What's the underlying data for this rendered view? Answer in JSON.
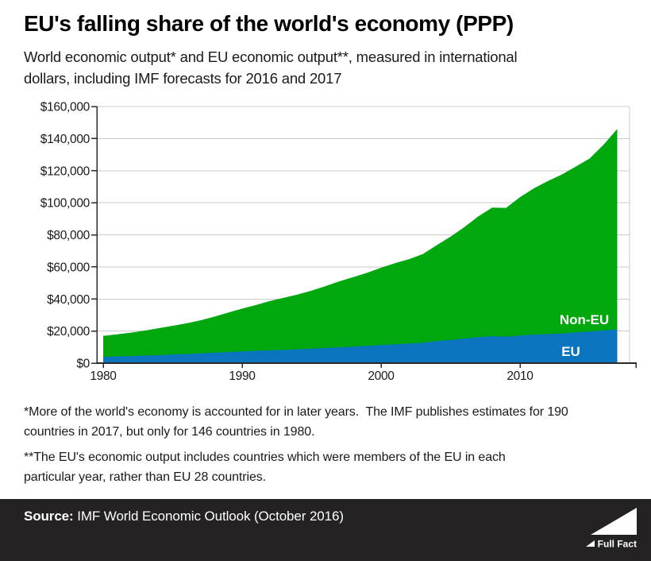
{
  "header": {
    "title": "EU's falling share of the world's economy (PPP)",
    "subtitle_line1": "World economic output* and EU economic output**, measured in international",
    "subtitle_line2": "dollars, including IMF forecasts for 2016 and 2017"
  },
  "chart_data": {
    "type": "area",
    "stacked": true,
    "title": "EU's falling share of the world's economy (PPP)",
    "xlabel": "",
    "ylabel": "international dollars",
    "xlim": [
      1980,
      2017
    ],
    "ylim": [
      0,
      160000
    ],
    "grid": "horizontal",
    "legend_position": "labels-inside-areas",
    "x": [
      1980,
      1981,
      1982,
      1983,
      1984,
      1985,
      1986,
      1987,
      1988,
      1989,
      1990,
      1991,
      1992,
      1993,
      1994,
      1995,
      1996,
      1997,
      1998,
      1999,
      2000,
      2001,
      2002,
      2003,
      2004,
      2005,
      2006,
      2007,
      2008,
      2009,
      2010,
      2011,
      2012,
      2013,
      2014,
      2015,
      2016,
      2017
    ],
    "series": [
      {
        "name": "World total (EU + Non-EU)",
        "area_label": "Non-EU",
        "color": "#00a80e",
        "values": [
          17000,
          18000,
          19000,
          20300,
          21800,
          23300,
          24800,
          26700,
          29000,
          31500,
          34000,
          36200,
          38800,
          40700,
          42800,
          45200,
          48000,
          51000,
          53600,
          56300,
          59500,
          62300,
          64800,
          68000,
          73500,
          78800,
          84800,
          91500,
          97000,
          96800,
          103500,
          109000,
          113500,
          117500,
          122500,
          127500,
          136000,
          146000
        ]
      },
      {
        "name": "EU",
        "area_label": "EU",
        "color": "#0b74be",
        "values": [
          3900,
          4200,
          4400,
          4700,
          5000,
          5400,
          5700,
          6100,
          6500,
          6900,
          7300,
          7700,
          8000,
          8200,
          8600,
          9000,
          9400,
          9900,
          10300,
          10800,
          11300,
          11800,
          12200,
          12700,
          13800,
          14400,
          15300,
          16300,
          16800,
          16500,
          17200,
          17800,
          18100,
          18500,
          19100,
          19700,
          20400,
          21000
        ]
      }
    ],
    "y_ticks": [
      {
        "value": 0,
        "label": "$0"
      },
      {
        "value": 20000,
        "label": "$20,000"
      },
      {
        "value": 40000,
        "label": "$40,000"
      },
      {
        "value": 60000,
        "label": "$60,000"
      },
      {
        "value": 80000,
        "label": "$80,000"
      },
      {
        "value": 100000,
        "label": "$100,000"
      },
      {
        "value": 120000,
        "label": "$120,000"
      },
      {
        "value": 140000,
        "label": "$140,000"
      },
      {
        "value": 160000,
        "label": "$160,000"
      }
    ],
    "x_ticks": [
      {
        "value": 1980,
        "label": "1980"
      },
      {
        "value": 1990,
        "label": "1990"
      },
      {
        "value": 2000,
        "label": "2000"
      },
      {
        "value": 2010,
        "label": "2010"
      }
    ],
    "area_labels": [
      {
        "text": "Non-EU",
        "x": 736,
        "y": 290,
        "color": "#ffffff"
      },
      {
        "text": "EU",
        "x": 719,
        "y": 330,
        "color": "#ffffff"
      }
    ]
  },
  "footnotes": {
    "fn1_line1": "*More of the world's economy is accounted for in later years.  The IMF publishes estimates for 190",
    "fn1_line2": "countries in 2017, but only for 146 countries in 1980.",
    "fn2_line1": "**The EU's economic output includes countries which were members of the EU in each",
    "fn2_line2": "particular year, rather than EU 28 countries."
  },
  "footer": {
    "source_label": "Source:",
    "source_text": " IMF World Economic Outlook (October 2016)",
    "logo_text": "Full Fact"
  },
  "colors": {
    "non_eu_green": "#00a80e",
    "eu_blue": "#0b74be",
    "gridline": "#cbcbcb",
    "axis": "#2b2b2b",
    "footer_background": "#252223",
    "text": "#1a1a1a",
    "area_label_text": "#ffffff"
  }
}
